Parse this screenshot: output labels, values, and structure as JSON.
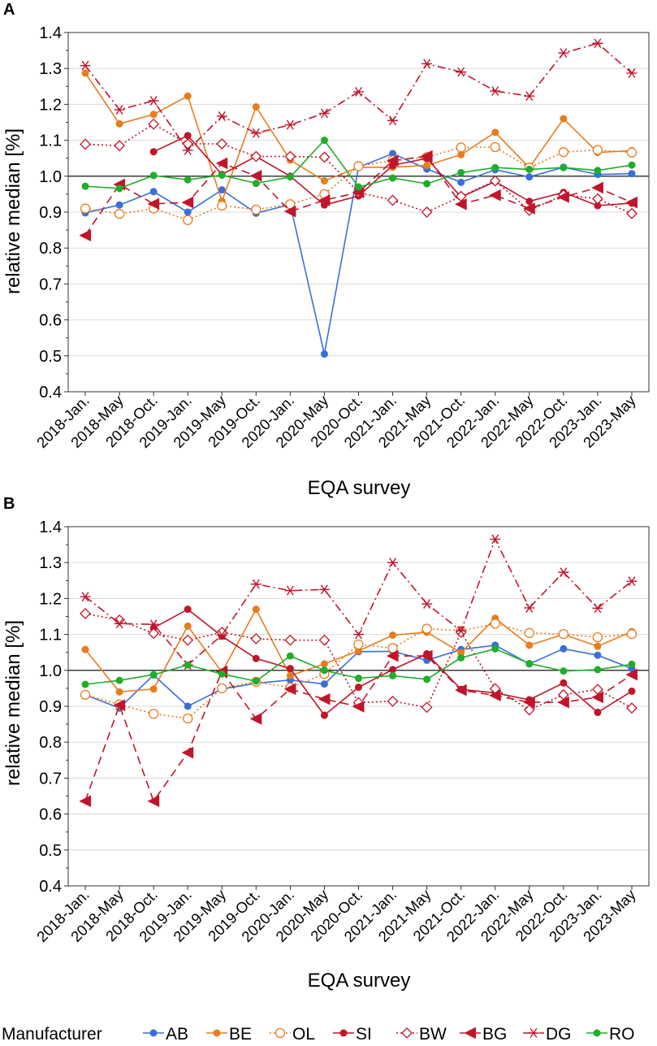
{
  "chart_data": [
    {
      "type": "line",
      "panel_label": "A",
      "title": "",
      "xlabel": "EQA survey",
      "ylabel": "relative median [%]",
      "ylim": [
        0.4,
        1.4
      ],
      "yticks": [
        "0.4",
        "0.5",
        "0.6",
        "0.7",
        "0.8",
        "0.9",
        "1.0",
        "1.1",
        "1.2",
        "1.3",
        "1.4"
      ],
      "reference_line": 1.0,
      "grid": "horizontal",
      "categories": [
        "2018-Jan.",
        "2018-May",
        "2018-Oct.",
        "2019-Jan.",
        "2019-May",
        "2019-Oct.",
        "2020-Jan.",
        "2020-May",
        "2020-Oct.",
        "2021-Jan.",
        "2021-May",
        "2021-Oct.",
        "2022-Jan.",
        "2022-May",
        "2022-Oct.",
        "2023-Jan.",
        "2023-May"
      ],
      "series": [
        {
          "name": "AB",
          "values": [
            0.898,
            0.92,
            0.957,
            0.9,
            0.962,
            0.897,
            0.921,
            0.505,
            1.025,
            1.063,
            1.02,
            0.983,
            1.018,
            0.998,
            1.025,
            1.005,
            1.007
          ]
        },
        {
          "name": "BE",
          "values": [
            1.287,
            1.146,
            1.172,
            1.223,
            0.93,
            1.193,
            1.045,
            0.987,
            1.025,
            1.025,
            1.03,
            1.06,
            1.122,
            1.024,
            1.16,
            1.066,
            1.071
          ]
        },
        {
          "name": "OL",
          "values": [
            0.91,
            0.895,
            0.91,
            0.878,
            0.918,
            0.907,
            0.922,
            0.95,
            1.028,
            1.044,
            1.053,
            1.08,
            1.081,
            1.024,
            1.067,
            1.073,
            1.066
          ]
        },
        {
          "name": "SI",
          "values": [
            null,
            null,
            1.068,
            1.113,
            1.005,
            1.055,
            1.0,
            0.92,
            0.945,
            1.03,
            1.05,
            0.942,
            0.985,
            0.93,
            0.955,
            0.918,
            0.925
          ]
        },
        {
          "name": "BW",
          "values": [
            1.089,
            1.085,
            1.145,
            1.09,
            1.09,
            1.055,
            1.055,
            1.053,
            0.955,
            0.933,
            0.9,
            0.944,
            0.987,
            0.905,
            0.948,
            0.937,
            0.896
          ]
        },
        {
          "name": "BG",
          "values": [
            0.835,
            0.977,
            0.923,
            0.927,
            1.036,
            1.001,
            0.902,
            0.933,
            0.955,
            1.043,
            1.056,
            0.922,
            0.947,
            0.91,
            0.942,
            0.968,
            0.927
          ]
        },
        {
          "name": "DG",
          "values": [
            1.308,
            1.185,
            1.21,
            1.072,
            1.167,
            1.12,
            1.143,
            1.175,
            1.235,
            1.155,
            1.313,
            1.29,
            1.237,
            1.223,
            1.343,
            1.37,
            1.287
          ]
        },
        {
          "name": "RO",
          "values": [
            0.972,
            0.966,
            1.002,
            0.99,
            1.003,
            0.98,
            0.998,
            1.1,
            0.97,
            0.995,
            0.979,
            1.01,
            1.024,
            1.019,
            1.024,
            1.016,
            1.031
          ]
        }
      ]
    },
    {
      "type": "line",
      "panel_label": "B",
      "title": "",
      "xlabel": "EQA survey",
      "ylabel": "relative median [%]",
      "ylim": [
        0.4,
        1.4
      ],
      "yticks": [
        "0.4",
        "0.5",
        "0.6",
        "0.7",
        "0.8",
        "0.9",
        "1.0",
        "1.1",
        "1.2",
        "1.3",
        "1.4"
      ],
      "reference_line": 1.0,
      "grid": "horizontal",
      "categories": [
        "2018-Jan.",
        "2018-May",
        "2018-Oct.",
        "2019-Jan.",
        "2019-May",
        "2019-Oct.",
        "2020-Jan.",
        "2020-May",
        "2020-Oct.",
        "2021-Jan.",
        "2021-May",
        "2021-Oct.",
        "2022-Jan.",
        "2022-May",
        "2022-Oct.",
        "2023-Jan.",
        "2023-May"
      ],
      "series": [
        {
          "name": "AB",
          "values": [
            0.932,
            0.895,
            0.987,
            0.9,
            0.948,
            0.964,
            0.973,
            0.962,
            1.052,
            1.053,
            1.028,
            1.058,
            1.07,
            1.018,
            1.06,
            1.042,
            1.005
          ]
        },
        {
          "name": "BE",
          "values": [
            1.058,
            0.94,
            0.948,
            1.123,
            0.995,
            1.17,
            0.985,
            1.018,
            1.054,
            1.098,
            1.106,
            1.049,
            1.145,
            1.07,
            1.1,
            1.067,
            1.108
          ]
        },
        {
          "name": "OL",
          "values": [
            0.932,
            0.905,
            0.879,
            0.866,
            0.95,
            0.968,
            0.952,
            0.99,
            1.072,
            1.062,
            1.116,
            1.11,
            1.13,
            1.104,
            1.101,
            1.092,
            1.101
          ]
        },
        {
          "name": "SI",
          "values": [
            null,
            null,
            1.118,
            1.17,
            1.095,
            1.033,
            1.005,
            0.875,
            0.953,
            1.002,
            1.046,
            0.947,
            0.937,
            0.918,
            0.965,
            0.883,
            0.942
          ]
        },
        {
          "name": "BW",
          "values": [
            1.158,
            1.14,
            1.103,
            1.084,
            1.106,
            1.088,
            1.084,
            1.084,
            0.91,
            0.914,
            0.897,
            1.106,
            0.949,
            0.89,
            0.932,
            0.947,
            0.895
          ]
        },
        {
          "name": "BG",
          "values": [
            0.636,
            0.903,
            0.636,
            0.771,
            0.997,
            0.865,
            0.948,
            0.92,
            0.899,
            1.04,
            1.04,
            0.945,
            0.93,
            0.911,
            0.911,
            0.925,
            0.988
          ]
        },
        {
          "name": "DG",
          "values": [
            1.205,
            1.13,
            1.128,
            1.015,
            1.098,
            1.24,
            1.222,
            1.225,
            1.1,
            1.3,
            1.185,
            1.11,
            1.365,
            1.174,
            1.273,
            1.173,
            1.248
          ]
        },
        {
          "name": "RO",
          "values": [
            0.961,
            0.972,
            0.988,
            1.015,
            0.99,
            0.97,
            1.04,
            1.0,
            0.978,
            0.985,
            0.975,
            1.035,
            1.06,
            1.019,
            0.998,
            1.002,
            1.017
          ]
        }
      ]
    }
  ],
  "legend": {
    "title": "Manufacturer",
    "placement": "bottom",
    "entries": [
      {
        "name": "AB",
        "color": "#3a6fd8",
        "marker": "filled-circle",
        "line": "solid"
      },
      {
        "name": "BE",
        "color": "#e87c1e",
        "marker": "filled-circle",
        "line": "solid"
      },
      {
        "name": "OL",
        "color": "#e87c1e",
        "marker": "open-circle",
        "line": "dotted"
      },
      {
        "name": "SI",
        "color": "#c0152a",
        "marker": "filled-circle",
        "line": "solid"
      },
      {
        "name": "BW",
        "color": "#c0152a",
        "marker": "open-diamond",
        "line": "dotted"
      },
      {
        "name": "BG",
        "color": "#c0152a",
        "marker": "left-triangle",
        "line": "dashed"
      },
      {
        "name": "DG",
        "color": "#c0152a",
        "marker": "asterisk",
        "line": "dashdot"
      },
      {
        "name": "RO",
        "color": "#1fae2a",
        "marker": "filled-circle",
        "line": "solid"
      }
    ]
  }
}
